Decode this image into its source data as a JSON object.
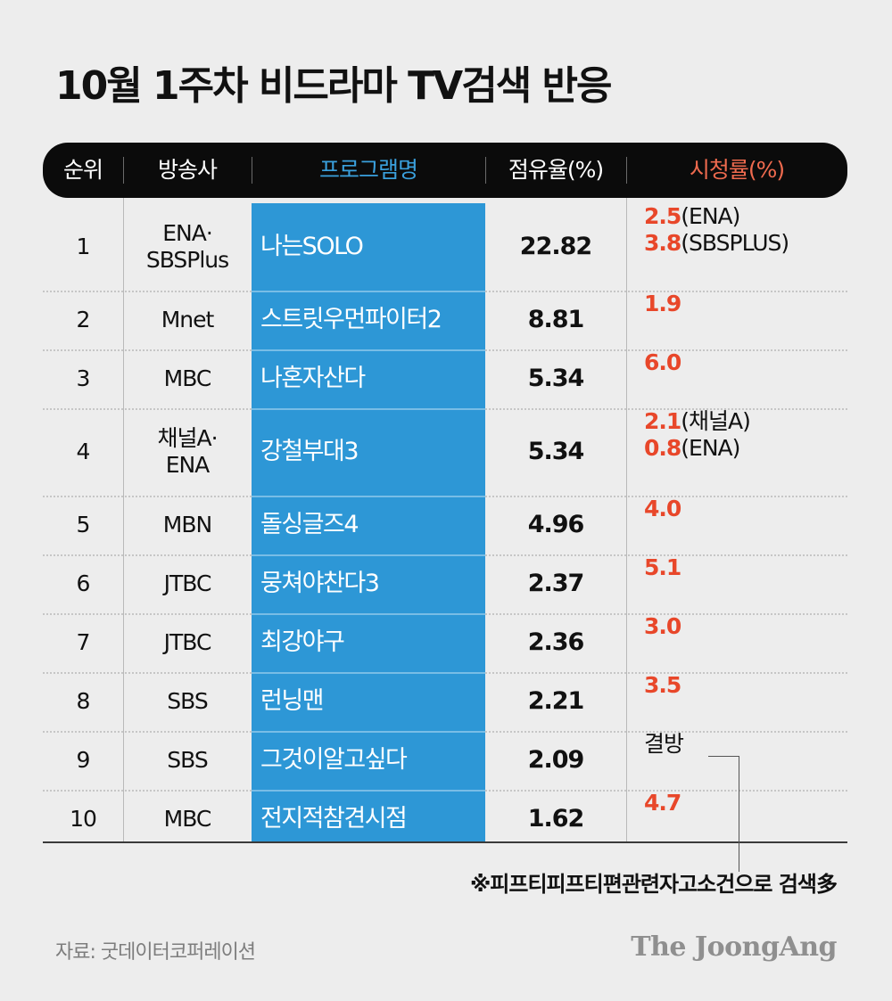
{
  "title": "10월 1주차 비드라마 TV검색 반응",
  "chart_data": {
    "type": "table",
    "columns": [
      "순위",
      "방송사",
      "프로그램명",
      "점유율(%)",
      "시청률(%)"
    ],
    "rows": [
      {
        "rank": "1",
        "broadcaster": [
          "ENA·",
          "SBSPlus"
        ],
        "program": "나는SOLO",
        "share": "22.82",
        "ratings": [
          {
            "value": "2.5",
            "note": "(ENA)"
          },
          {
            "value": "3.8",
            "note": "(SBSPLUS)"
          }
        ]
      },
      {
        "rank": "2",
        "broadcaster": [
          "Mnet"
        ],
        "program": "스트릿우먼파이터2",
        "share": "8.81",
        "ratings": [
          {
            "value": "1.9",
            "note": ""
          }
        ]
      },
      {
        "rank": "3",
        "broadcaster": [
          "MBC"
        ],
        "program": "나혼자산다",
        "share": "5.34",
        "ratings": [
          {
            "value": "6.0",
            "note": ""
          }
        ]
      },
      {
        "rank": "4",
        "broadcaster": [
          "채널A·",
          "ENA"
        ],
        "program": "강철부대3",
        "share": "5.34",
        "ratings": [
          {
            "value": "2.1",
            "note": "(채널A)"
          },
          {
            "value": "0.8",
            "note": "(ENA)"
          }
        ]
      },
      {
        "rank": "5",
        "broadcaster": [
          "MBN"
        ],
        "program": "돌싱글즈4",
        "share": "4.96",
        "ratings": [
          {
            "value": "4.0",
            "note": ""
          }
        ]
      },
      {
        "rank": "6",
        "broadcaster": [
          "JTBC"
        ],
        "program": "뭉쳐야찬다3",
        "share": "2.37",
        "ratings": [
          {
            "value": "5.1",
            "note": ""
          }
        ]
      },
      {
        "rank": "7",
        "broadcaster": [
          "JTBC"
        ],
        "program": "최강야구",
        "share": "2.36",
        "ratings": [
          {
            "value": "3.0",
            "note": ""
          }
        ]
      },
      {
        "rank": "8",
        "broadcaster": [
          "SBS"
        ],
        "program": "런닝맨",
        "share": "2.21",
        "ratings": [
          {
            "value": "3.5",
            "note": ""
          }
        ]
      },
      {
        "rank": "9",
        "broadcaster": [
          "SBS"
        ],
        "program": "그것이알고싶다",
        "share": "2.09",
        "ratings": [
          {
            "missing": "결방"
          }
        ]
      },
      {
        "rank": "10",
        "broadcaster": [
          "MBC"
        ],
        "program": "전지적참견시점",
        "share": "1.62",
        "ratings": [
          {
            "value": "4.7",
            "note": ""
          }
        ]
      }
    ]
  },
  "footnote": "※피프티피프티편관련자고소건으로 검색多",
  "source": "자료: 굿데이터코퍼레이션",
  "logo": "The JoongAng",
  "colors": {
    "background": "#ededed",
    "header_bg": "#0b0b0b",
    "program_column": "#2d97d6",
    "program_header": "#3aa0dd",
    "ratings_header": "#ee6a4e",
    "ratings_value": "#e8472a"
  }
}
